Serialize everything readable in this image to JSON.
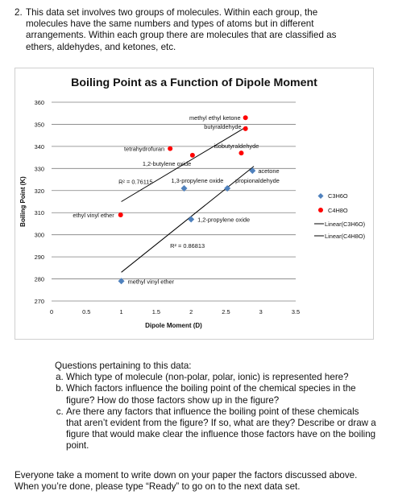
{
  "intro": {
    "number": "2.",
    "lines": [
      "This data set involves two groups of molecules.  Within each group, the",
      "molecules have the same numbers and types of atoms but in different",
      "arrangements.  Within each group there are molecules that are classified as",
      "ethers, aldehydes, and ketones, etc."
    ]
  },
  "chart_data": {
    "type": "scatter",
    "title": "Boiling Point as a Function of Dipole Moment",
    "xlabel": "Dipole Moment (D)",
    "ylabel": "Boiling Point (K)",
    "xlim": [
      0,
      3.5
    ],
    "ylim": [
      270,
      360
    ],
    "x_ticks": [
      "0",
      "0.5",
      "1",
      "1.5",
      "2",
      "2.5",
      "3",
      "3.5"
    ],
    "y_ticks": [
      "270",
      "280",
      "290",
      "300",
      "310",
      "320",
      "330",
      "340",
      "350",
      "360"
    ],
    "grid": "horizontal",
    "legend_position": "right",
    "series": [
      {
        "name": "C3H6O",
        "marker": "diamond",
        "color": "#4f81bd",
        "points": [
          {
            "x": 1.0,
            "y": 279,
            "label": "methyl vinyl ether"
          },
          {
            "x": 1.9,
            "y": 321,
            "label": "1,3-propylene oxide"
          },
          {
            "x": 2.0,
            "y": 307,
            "label": "1,2-propylene oxide"
          },
          {
            "x": 2.52,
            "y": 321,
            "label": "propionaldehyde"
          },
          {
            "x": 2.88,
            "y": 329,
            "label": "acetone"
          }
        ]
      },
      {
        "name": "C4H8O",
        "marker": "circle",
        "color": "#ff0000",
        "points": [
          {
            "x": 0.99,
            "y": 309,
            "label": "ethyl vinyl ether"
          },
          {
            "x": 1.7,
            "y": 339,
            "label": "tetrahydrofuran"
          },
          {
            "x": 2.02,
            "y": 336,
            "label": "1,2-butylene oxide"
          },
          {
            "x": 2.72,
            "y": 337,
            "label": "isobutyraldehyde"
          },
          {
            "x": 2.78,
            "y": 348,
            "label": "butyraldehyde"
          },
          {
            "x": 2.78,
            "y": 353,
            "label": "methyl ethyl ketone"
          }
        ]
      }
    ],
    "trendlines": [
      {
        "name": "Linear(C3H6O)",
        "series": "C3H6O",
        "r2": "R² = 0.86813",
        "x_range": [
          1.0,
          2.9
        ],
        "y_start": 283,
        "y_end": 331
      },
      {
        "name": "Linear(C4H8O)",
        "series": "C4H8O",
        "r2": "R² = 0.76115",
        "x_range": [
          1.0,
          2.8
        ],
        "y_start": 315,
        "y_end": 349
      }
    ],
    "legend": [
      "C3H6O",
      "C4H8O",
      "Linear(C3H6O)",
      "Linear(C4H8O)"
    ]
  },
  "questions": {
    "intro": "Questions pertaining to this data:",
    "items": [
      "Which type of molecule (non-polar, polar, ionic) is represented here?",
      "Which factors influence the boiling point of the chemical species in the figure?  How do those factors show up in the figure?",
      "Are there any factors that influence the boiling point of these chemicals that aren’t evident from the figure?  If so, what are they?  Describe or draw a figure that would make clear the influence those factors have on the boiling point."
    ]
  },
  "outro": {
    "line1": "Everyone take a moment to write down on your paper the factors discussed above.",
    "line2": "When you’re done, please type “Ready” to go on to the next data set."
  }
}
